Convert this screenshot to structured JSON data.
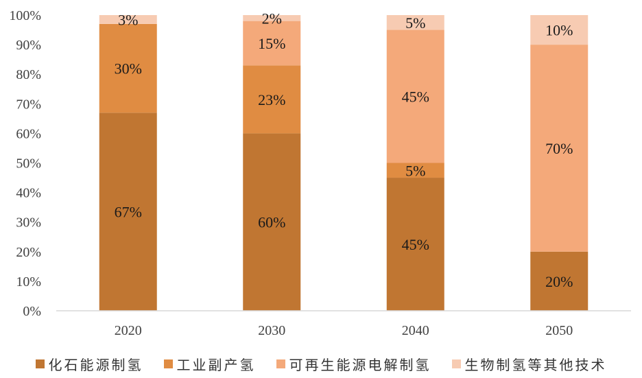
{
  "chart_data": {
    "type": "bar",
    "stacked": true,
    "categories": [
      "2020",
      "2030",
      "2040",
      "2050"
    ],
    "series": [
      {
        "name": "化石能源制氢",
        "color": "#C07632",
        "values": [
          67,
          60,
          45,
          20
        ]
      },
      {
        "name": "工业副产氢",
        "color": "#E08C42",
        "values": [
          30,
          23,
          5,
          0
        ]
      },
      {
        "name": "可再生能源电解制氢",
        "color": "#F4A97A",
        "values": [
          0,
          15,
          45,
          70
        ]
      },
      {
        "name": "生物制氢等其他技术",
        "color": "#F7CBB2",
        "values": [
          3,
          2,
          5,
          10
        ]
      }
    ],
    "ylim": [
      0,
      100
    ],
    "yticks": [
      "0%",
      "10%",
      "20%",
      "30%",
      "40%",
      "50%",
      "60%",
      "70%",
      "80%",
      "90%",
      "100%"
    ],
    "value_suffix": "%",
    "legend_position": "bottom",
    "grid": false
  }
}
